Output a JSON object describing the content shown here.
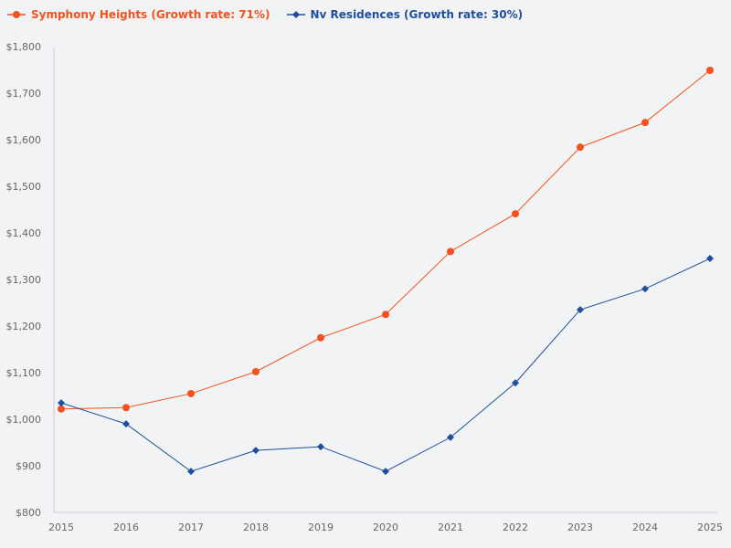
{
  "chart_data": {
    "type": "line",
    "title": "",
    "xlabel": "",
    "ylabel": "",
    "x": [
      2015,
      2016,
      2017,
      2018,
      2019,
      2020,
      2021,
      2022,
      2023,
      2024,
      2025
    ],
    "ylim": [
      800,
      1800
    ],
    "yticks": [
      "$800",
      "$900",
      "$1,000",
      "$1,100",
      "$1,200",
      "$1,300",
      "$1,400",
      "$1,500",
      "$1,600",
      "$1,700",
      "$1,800"
    ],
    "xticks": [
      "2015",
      "2016",
      "2017",
      "2018",
      "2019",
      "2020",
      "2021",
      "2022",
      "2023",
      "2024",
      "2025"
    ],
    "grid": false,
    "legend_position": "top-left",
    "series": [
      {
        "name": "Symphony Heights (Growth rate: 71%)",
        "color": "#f4511e",
        "marker": "circle",
        "values": [
          1022,
          1025,
          1055,
          1102,
          1175,
          1225,
          1360,
          1441,
          1584,
          1637,
          1749
        ]
      },
      {
        "name": "Nv Residences (Growth rate: 30%)",
        "color": "#1f4e9e",
        "marker": "diamond",
        "values": [
          1035,
          990,
          888,
          933,
          941,
          888,
          961,
          1078,
          1235,
          1280,
          1345
        ]
      }
    ]
  }
}
